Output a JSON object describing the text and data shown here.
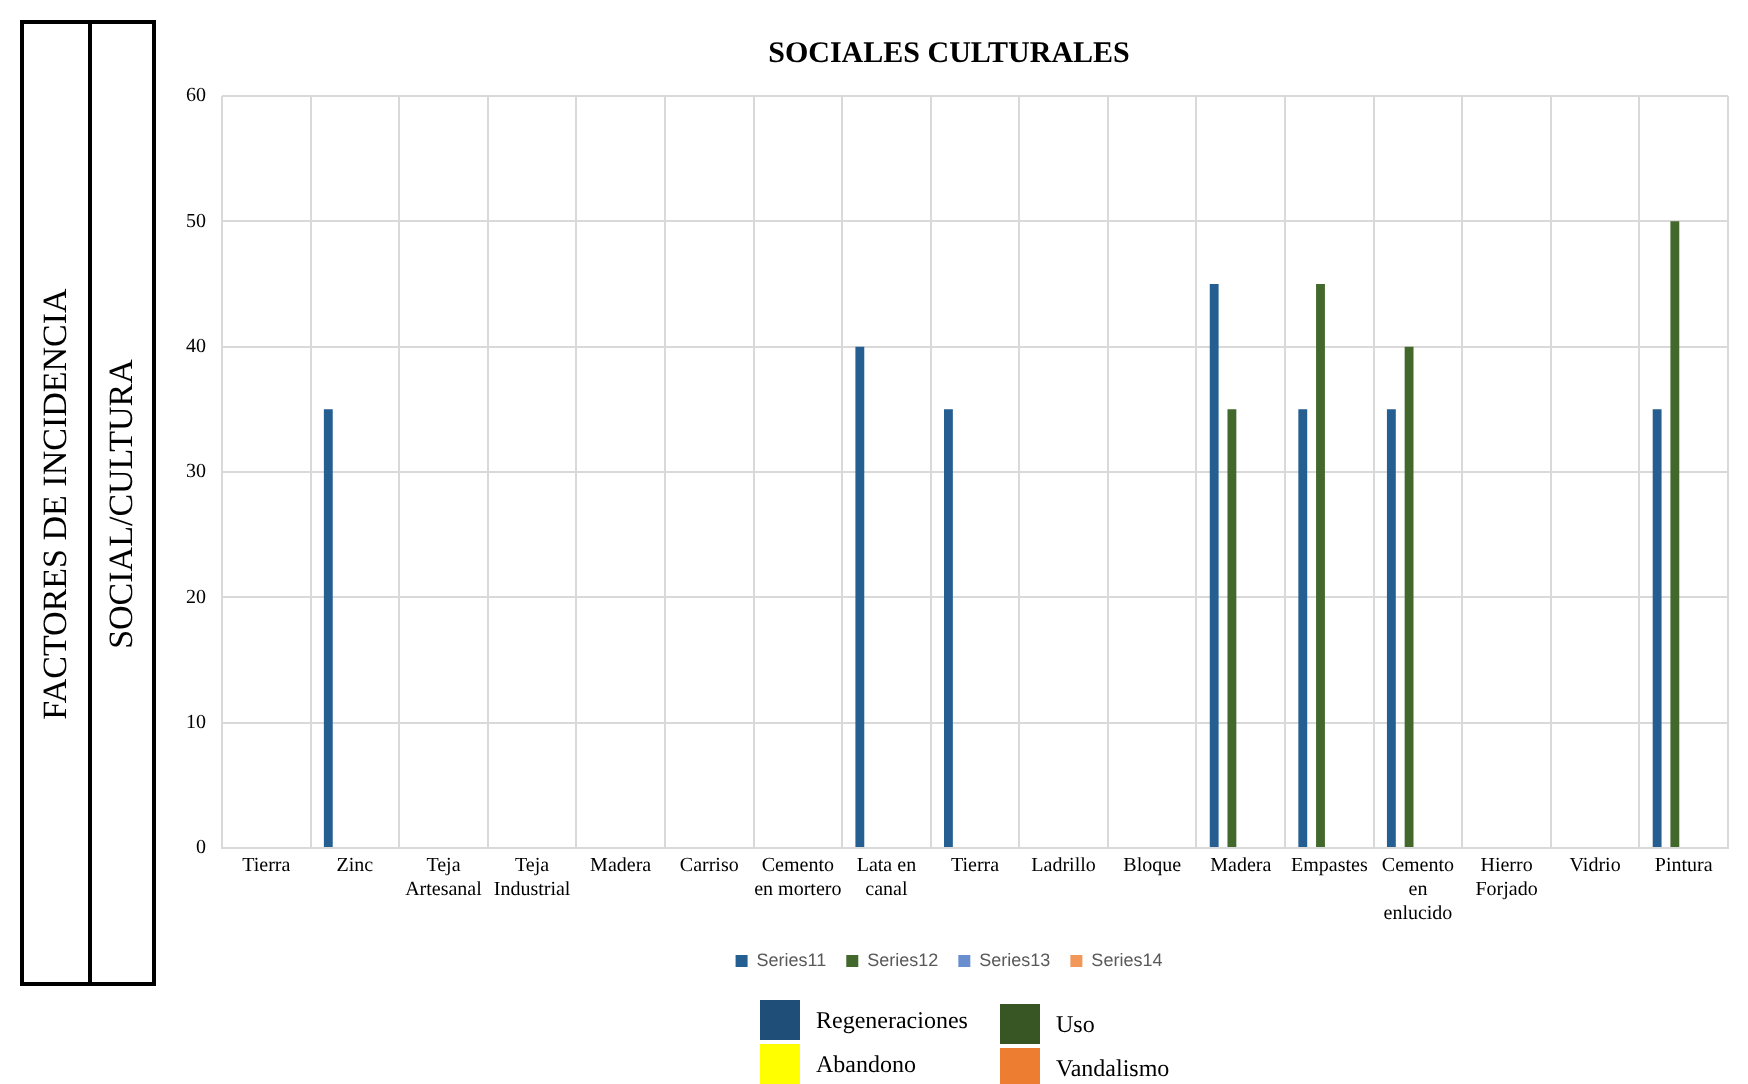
{
  "chart_data": {
    "type": "bar",
    "title": "SOCIALES CULTURALES",
    "categories": [
      "Tierra",
      "Zinc",
      "Teja Artesanal",
      "Teja Industrial",
      "Madera",
      "Carriso",
      "Cemento en mortero",
      "Lata en canal",
      "Tierra",
      "Ladrillo",
      "Bloque",
      "Madera",
      "Empastes",
      "Cemento en enlucido",
      "Hierro Forjado",
      "Vidrio",
      "Pintura"
    ],
    "series": [
      {
        "name": "Series11",
        "color": "#255e91",
        "values": [
          null,
          35,
          null,
          null,
          null,
          null,
          null,
          40,
          35,
          null,
          null,
          45,
          35,
          35,
          null,
          null,
          35
        ]
      },
      {
        "name": "Series12",
        "color": "#43682b",
        "values": [
          null,
          null,
          null,
          null,
          null,
          null,
          null,
          null,
          null,
          null,
          null,
          35,
          45,
          40,
          null,
          null,
          50
        ]
      },
      {
        "name": "Series13",
        "color": "#698ed0",
        "values": [
          null,
          null,
          null,
          null,
          null,
          null,
          null,
          null,
          null,
          null,
          null,
          null,
          null,
          null,
          null,
          null,
          null
        ]
      },
      {
        "name": "Series14",
        "color": "#f1975a",
        "values": [
          null,
          null,
          null,
          null,
          null,
          null,
          null,
          null,
          null,
          null,
          null,
          null,
          null,
          null,
          null,
          null,
          null
        ]
      }
    ],
    "ylim": [
      0,
      60
    ],
    "yticks": [
      0,
      10,
      20,
      30,
      40,
      50,
      60
    ],
    "grid": true,
    "legend": "bottom",
    "annotations": [
      "FACTORES DE INCIDENCIA",
      "SOCIAL/CULTURA",
      "Regeneraciones",
      "Uso",
      "Abandono",
      "Vandalismo"
    ]
  }
}
